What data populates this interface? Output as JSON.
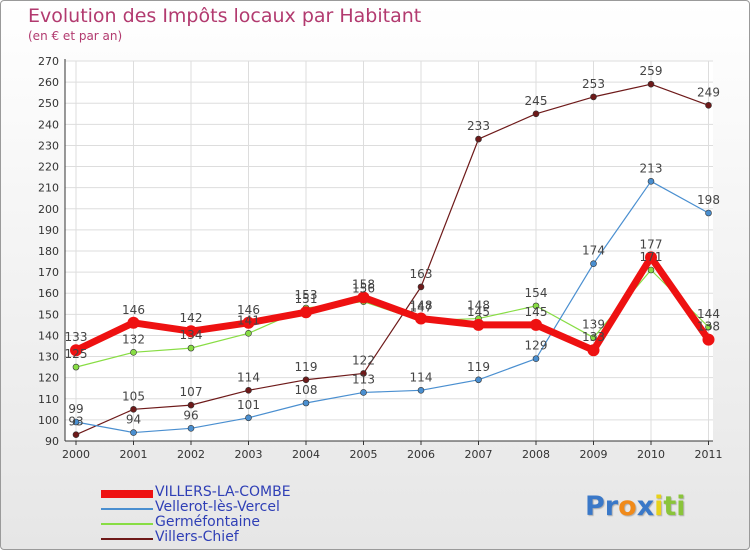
{
  "chart_data": {
    "type": "line",
    "title": "Evolution des Impôts locaux par Habitant",
    "subtitle": "(en € et par an)",
    "x": [
      "2000",
      "2001",
      "2002",
      "2003",
      "2004",
      "2005",
      "2006",
      "2007",
      "2008",
      "2009",
      "2010",
      "2011"
    ],
    "ylim": [
      90,
      270
    ],
    "yticks": [
      90,
      100,
      110,
      120,
      130,
      140,
      150,
      160,
      170,
      180,
      190,
      200,
      210,
      220,
      230,
      240,
      250,
      260,
      270
    ],
    "grid": true,
    "series": [
      {
        "name": "VILLERS-LA-COMBE",
        "color": "#ee1111",
        "values": [
          133,
          146,
          142,
          146,
          151,
          158,
          148,
          145,
          145,
          133,
          177,
          138
        ],
        "labels": [
          "133",
          "146",
          "142",
          "146",
          "151",
          "158",
          "148",
          "145",
          "145",
          "133",
          "177",
          "138"
        ]
      },
      {
        "name": "Vellerot-lès-Vercel",
        "color": "#4a8fd0",
        "values": [
          99,
          94,
          96,
          101,
          108,
          113,
          114,
          119,
          129,
          174,
          213,
          198
        ],
        "labels": [
          "99",
          "94",
          "96",
          "101",
          "108",
          "113",
          "114",
          "119",
          "129",
          "174",
          "213",
          "198"
        ]
      },
      {
        "name": "Germéfontaine",
        "color": "#88dd44",
        "values": [
          125,
          132,
          134,
          141,
          153,
          156,
          147,
          148,
          154,
          139,
          171,
          144
        ],
        "labels": [
          "125",
          "132",
          "134",
          "141",
          "153",
          "156",
          "147",
          "148",
          "154",
          "139",
          "171",
          "144"
        ]
      },
      {
        "name": "Villers-Chief",
        "color": "#6e1a1a",
        "values": [
          93,
          105,
          107,
          114,
          119,
          122,
          163,
          233,
          245,
          253,
          259,
          249
        ],
        "labels": [
          "93",
          "105",
          "107",
          "114",
          "119",
          "122",
          "163",
          "233",
          "245",
          "253",
          "259",
          "249"
        ]
      }
    ]
  },
  "logo": {
    "letters": [
      "P",
      "r",
      "o",
      "x",
      "i",
      "t",
      "i"
    ],
    "colors": [
      "#3a78c8",
      "#3a78c8",
      "#f08a1a",
      "#3a78c8",
      "#e8d21a",
      "#8ac43a",
      "#8ac43a"
    ]
  }
}
